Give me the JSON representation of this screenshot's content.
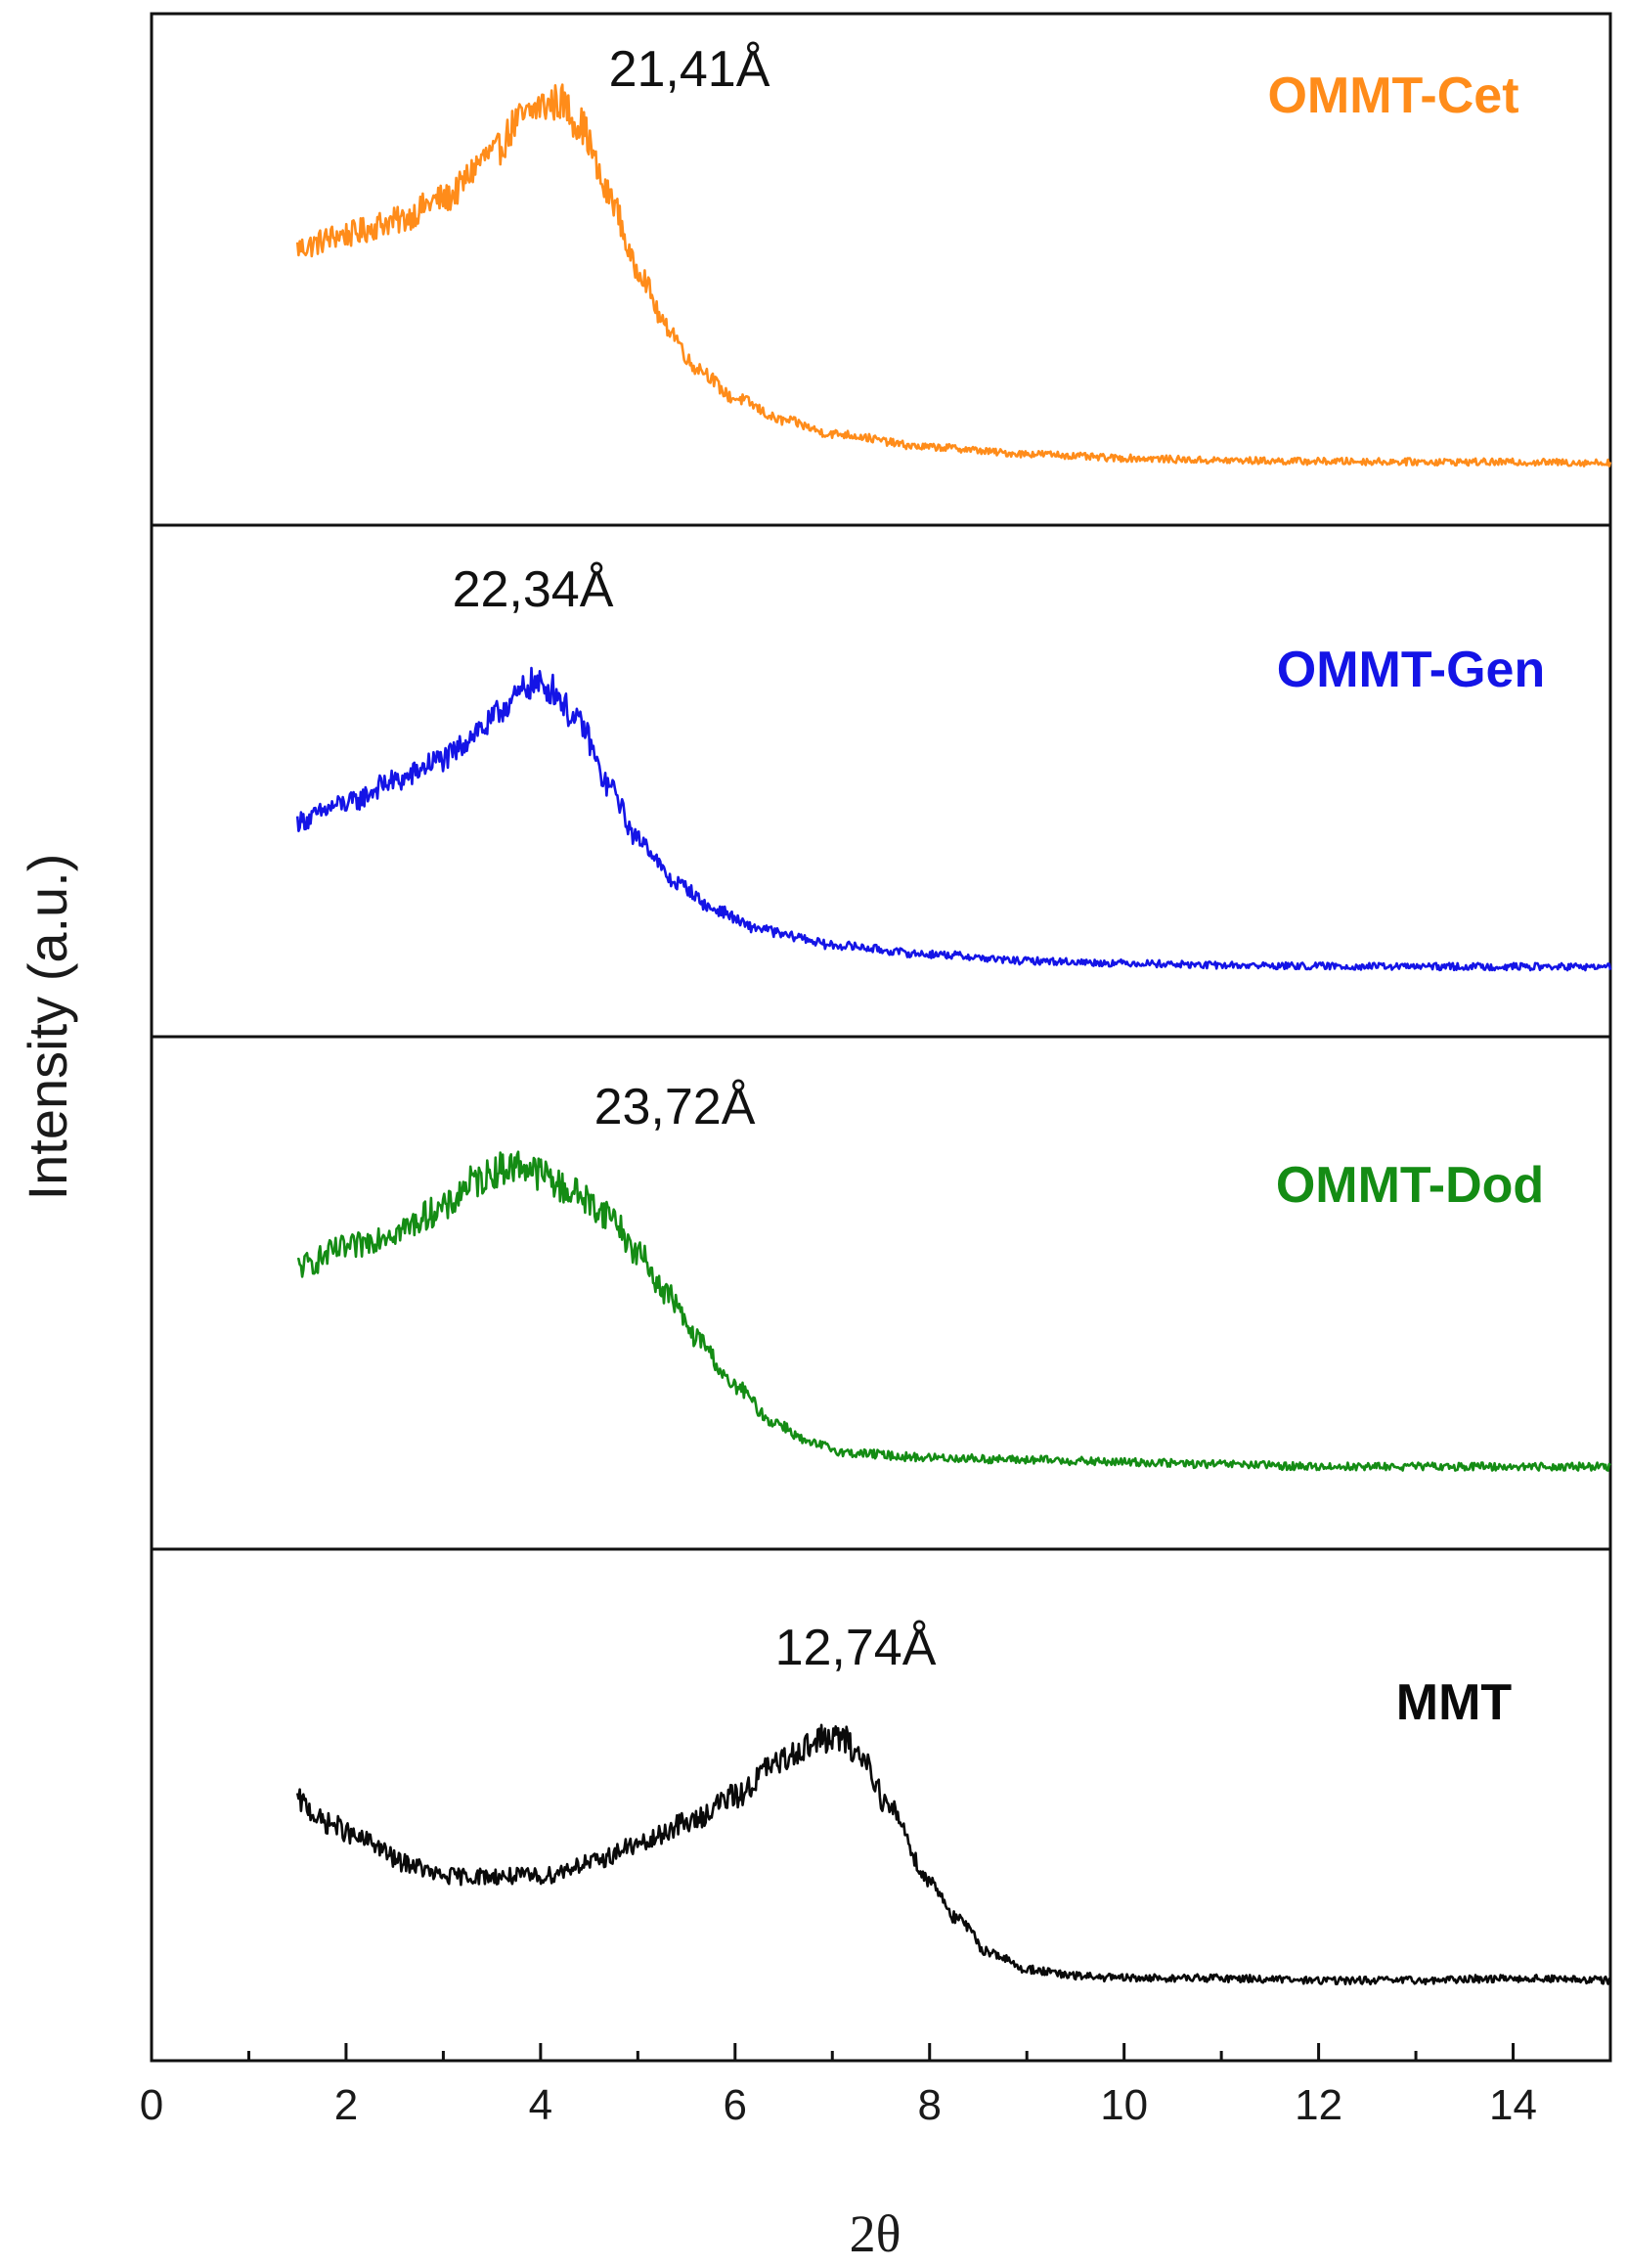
{
  "chart_data": {
    "type": "line",
    "title": "",
    "xlabel": "2θ",
    "ylabel": "Intensity (a.u.)",
    "xlim": [
      0,
      15
    ],
    "x_major_ticks": [
      0,
      2,
      4,
      6,
      8,
      10,
      12,
      14
    ],
    "x_tick_labels": [
      "0",
      "2",
      "4",
      "6",
      "8",
      "10",
      "12",
      "14"
    ],
    "x_minor_ticks": [
      1,
      3,
      5,
      7,
      9,
      11,
      13
    ],
    "grid": false,
    "layout": "four vertically stacked panels sharing x-axis",
    "series": [
      {
        "name": "OMMT-Cet",
        "label": "OMMT-Cet",
        "color": "#FF8C1A",
        "peak_label": "21,41Å",
        "peak_x": 4.1,
        "ylim": [
          0,
          1
        ],
        "x": [
          1.5,
          2.0,
          2.5,
          3.0,
          3.5,
          3.8,
          4.0,
          4.2,
          4.4,
          4.7,
          5.0,
          5.3,
          5.6,
          6.0,
          6.5,
          7.0,
          8.0,
          9.0,
          10.0,
          11.0,
          12.0,
          13.0,
          14.0,
          15.0
        ],
        "y": [
          0.56,
          0.59,
          0.62,
          0.67,
          0.77,
          0.85,
          0.88,
          0.89,
          0.84,
          0.68,
          0.51,
          0.38,
          0.29,
          0.22,
          0.17,
          0.14,
          0.11,
          0.095,
          0.085,
          0.08,
          0.078,
          0.077,
          0.076,
          0.075
        ]
      },
      {
        "name": "OMMT-Gen",
        "label": "OMMT-Gen",
        "color": "#1414E6",
        "peak_label": "22,34Å",
        "peak_x": 3.9,
        "ylim": [
          0,
          1
        ],
        "x": [
          1.5,
          2.0,
          2.5,
          3.0,
          3.4,
          3.7,
          3.9,
          4.1,
          4.4,
          4.7,
          5.0,
          5.4,
          5.8,
          6.2,
          6.6,
          7.0,
          8.0,
          9.0,
          10.0,
          11.0,
          12.0,
          13.0,
          14.0,
          15.0
        ],
        "y": [
          0.42,
          0.46,
          0.51,
          0.56,
          0.63,
          0.69,
          0.73,
          0.72,
          0.64,
          0.5,
          0.38,
          0.28,
          0.22,
          0.18,
          0.16,
          0.14,
          0.12,
          0.105,
          0.1,
          0.095,
          0.093,
          0.092,
          0.092,
          0.091
        ]
      },
      {
        "name": "OMMT-Dod",
        "label": "OMMT-Dod",
        "color": "#148C14",
        "peak_label": "23,72Å",
        "peak_x": 3.7,
        "ylim": [
          0,
          1
        ],
        "x": [
          1.5,
          2.0,
          2.5,
          3.0,
          3.3,
          3.6,
          3.8,
          4.0,
          4.3,
          4.7,
          5.0,
          5.3,
          5.6,
          6.0,
          6.4,
          6.8,
          7.2,
          8.0,
          9.0,
          10.0,
          11.0,
          12.0,
          13.0,
          14.0,
          15.0
        ],
        "y": [
          0.57,
          0.61,
          0.65,
          0.7,
          0.76,
          0.79,
          0.8,
          0.78,
          0.74,
          0.69,
          0.6,
          0.51,
          0.41,
          0.3,
          0.22,
          0.17,
          0.15,
          0.14,
          0.135,
          0.13,
          0.125,
          0.12,
          0.12,
          0.12,
          0.12
        ]
      },
      {
        "name": "MMT",
        "label": "MMT",
        "color": "#0A0A0A",
        "peak_label": "12,74Å",
        "peak_x": 6.9,
        "ylim": [
          0,
          1
        ],
        "x": [
          1.5,
          1.8,
          2.2,
          2.6,
          3.0,
          3.5,
          4.0,
          4.5,
          5.0,
          5.5,
          6.0,
          6.4,
          6.7,
          6.9,
          7.1,
          7.3,
          7.6,
          8.0,
          8.3,
          8.6,
          9.0,
          9.5,
          10.0,
          11.0,
          12.0,
          13.0,
          14.0,
          15.0
        ],
        "y": [
          0.52,
          0.47,
          0.43,
          0.38,
          0.35,
          0.35,
          0.35,
          0.38,
          0.42,
          0.47,
          0.53,
          0.6,
          0.64,
          0.66,
          0.66,
          0.62,
          0.5,
          0.34,
          0.25,
          0.18,
          0.14,
          0.125,
          0.12,
          0.12,
          0.115,
          0.115,
          0.12,
          0.115
        ]
      }
    ]
  }
}
